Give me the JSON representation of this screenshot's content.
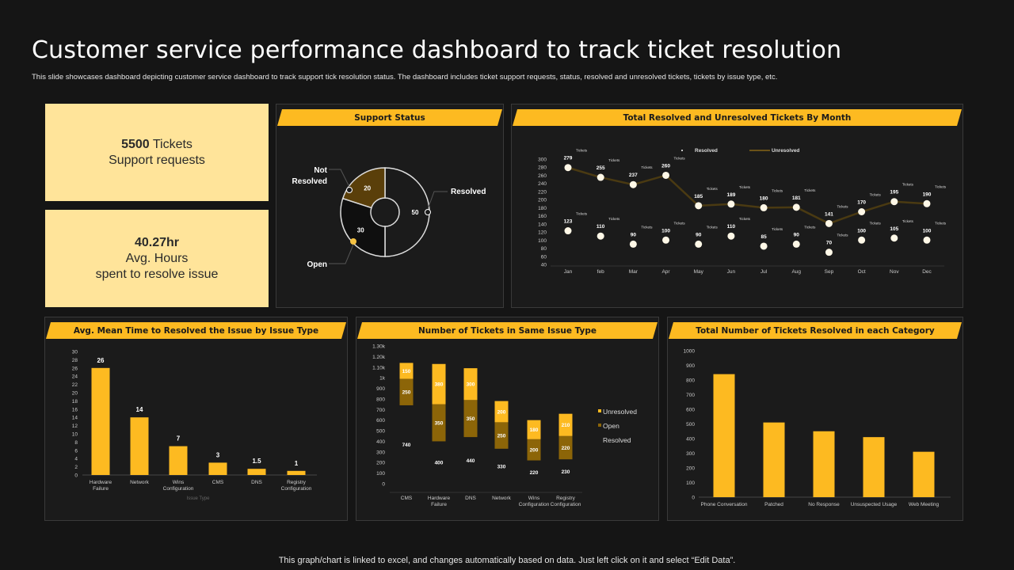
{
  "title": "Customer service performance dashboard to track ticket resolution",
  "subtitle": "This slide showcases dashboard depicting customer service dashboard to track support tick resolution status. The dashboard includes ticket support requests, status, resolved and unresolved tickets, tickets by issue type, etc.",
  "kpis": [
    {
      "value": "5500",
      "unit": " Tickets",
      "label": "Support requests"
    },
    {
      "value": "40.27hr",
      "unit": "",
      "label": "Avg. Hours",
      "label2": "spent to resolve issue"
    }
  ],
  "footer": "This graph/chart is linked to excel,  and changes automatically based on data. Just left click on it and select “Edit Data”.",
  "colors": {
    "accent": "#FDBA21",
    "kpi_bg": "#FFE49A",
    "open_dark": "#8C6508",
    "not_resolved": "#5A3F0A"
  },
  "panels": {
    "support_status": "Support Status",
    "line": "Total Resolved and Unresolved Tickets By Month",
    "mean_time": "Avg. Mean Time to Resolved the Issue by Issue Type",
    "same_issue": "Number of Tickets  in Same Issue Type",
    "category": "Total Number of Tickets Resolved in each Category"
  },
  "chart_data": [
    {
      "type": "pie",
      "title": "Support Status",
      "categories": [
        "Resolved",
        "Open",
        "Not Resolved"
      ],
      "values": [
        50,
        30,
        20
      ]
    },
    {
      "type": "line",
      "title": "Total Resolved and Unresolved Tickets By Month",
      "categories": [
        "Jan",
        "feb",
        "Mar",
        "Apr",
        "May",
        "Jun",
        "Jul",
        "Aug",
        "Sep",
        "Oct",
        "Nov",
        "Dec"
      ],
      "unit_label": "Tickets",
      "series": [
        {
          "name": "Resolved",
          "values": [
            123,
            110,
            90,
            100,
            90,
            110,
            85,
            90,
            70,
            100,
            105,
            100
          ]
        },
        {
          "name": "Unresolved",
          "values": [
            279,
            255,
            237,
            260,
            185,
            189,
            180,
            181,
            141,
            170,
            195,
            190
          ]
        }
      ],
      "yticks": [
        40,
        60,
        80,
        100,
        120,
        140,
        160,
        180,
        200,
        220,
        240,
        260,
        280,
        300
      ],
      "ylim": [
        40,
        300
      ],
      "legend": "top"
    },
    {
      "type": "bar",
      "title": "Avg. Mean Time to Resolved the Issue by Issue Type",
      "categories": [
        "Hardware Failure",
        "Network",
        "Wins Configuration",
        "CMS",
        "DNS",
        "Registry Configuration"
      ],
      "values": [
        26,
        14,
        7,
        3,
        1.5,
        1
      ],
      "value_labels": [
        "26",
        "14",
        "7",
        "3",
        "1.5",
        "1"
      ],
      "xlabel": "Issue Type",
      "yticks": [
        0,
        2,
        4,
        6,
        8,
        10,
        12,
        14,
        16,
        18,
        20,
        22,
        24,
        26,
        28,
        30
      ],
      "ylim": [
        0,
        30
      ]
    },
    {
      "type": "bar",
      "stacked": true,
      "title": "Number of Tickets  in Same Issue Type",
      "categories": [
        "CMS",
        "Hardware Failure",
        "DNS",
        "Network",
        "Wins Configuration",
        "Registry Configuration"
      ],
      "series": [
        {
          "name": "Resolved",
          "values": [
            740,
            400,
            440,
            330,
            220,
            230
          ]
        },
        {
          "name": "Open",
          "values": [
            250,
            350,
            350,
            250,
            200,
            220
          ]
        },
        {
          "name": "Unresolved",
          "values": [
            150,
            380,
            300,
            200,
            180,
            210
          ]
        }
      ],
      "ytick_labels": [
        "0",
        "100",
        "200",
        "300",
        "400",
        "500",
        "600",
        "700",
        "800",
        "900",
        "1k",
        "1.10k",
        "1.20k",
        "1.30k"
      ],
      "ylim": [
        0,
        1300
      ],
      "legend": "right"
    },
    {
      "type": "bar",
      "title": "Total Number of Tickets Resolved in each Category",
      "categories": [
        "Phone Conversation",
        "Patched",
        "No Response",
        "Unsuspected Usage",
        "Web Meeting"
      ],
      "values": [
        840,
        510,
        450,
        410,
        310
      ],
      "yticks": [
        0,
        100,
        200,
        300,
        400,
        500,
        600,
        700,
        800,
        900,
        1000
      ],
      "ylim": [
        0,
        1000
      ]
    }
  ]
}
